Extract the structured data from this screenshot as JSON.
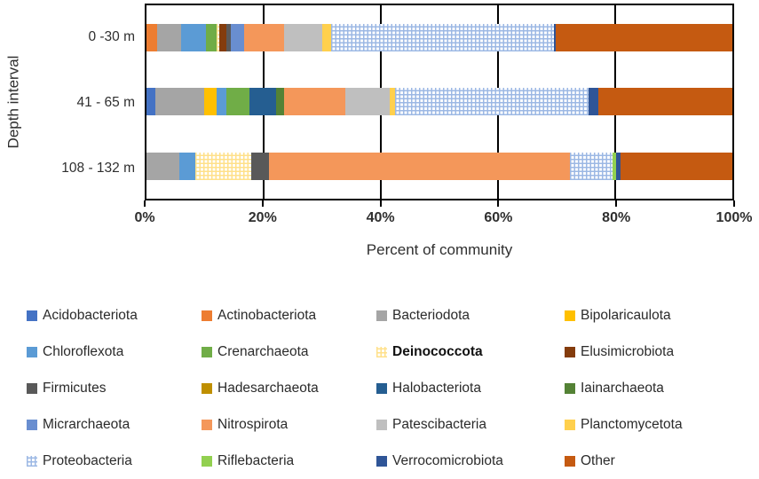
{
  "chart_data": {
    "type": "bar",
    "orientation": "horizontal",
    "stacked": true,
    "xlabel": "Percent of community",
    "ylabel": "Depth interval",
    "categories": [
      "0 -30 m",
      "41 - 65 m",
      "108 - 132 m"
    ],
    "x_ticks": [
      "0%",
      "20%",
      "40%",
      "60%",
      "80%",
      "100%"
    ],
    "x_tick_values": [
      0,
      20,
      40,
      60,
      80,
      100
    ],
    "xlim": [
      0,
      100
    ],
    "gridline_values": [
      20,
      40,
      60,
      80
    ],
    "legend_position": "bottom",
    "legend_columns": 4,
    "series": [
      {
        "name": "Acidobacteriota",
        "color": "#4472C4",
        "values": [
          0,
          1.5,
          0
        ]
      },
      {
        "name": "Actinobacteriota",
        "color": "#ED7D31",
        "values": [
          1.8,
          0,
          0
        ]
      },
      {
        "name": "Bacteriodota",
        "color": "#A5A5A5",
        "values": [
          4.1,
          8.4,
          5.6
        ]
      },
      {
        "name": "Bipolaricaulota",
        "color": "#FFC000",
        "values": [
          0,
          2.0,
          0
        ]
      },
      {
        "name": "Chloroflexota",
        "color": "#5B9BD5",
        "values": [
          4.2,
          1.7,
          2.7
        ]
      },
      {
        "name": "Crenarchaeota",
        "color": "#70AD47",
        "values": [
          1.8,
          4.0,
          0
        ]
      },
      {
        "name": "Deinococcota",
        "color": "#FFE08A",
        "pattern": "grid",
        "bold_label": true,
        "values": [
          0.6,
          0,
          9.6
        ]
      },
      {
        "name": "Elusimicrobiota",
        "color": "#843C0C",
        "values": [
          1.1,
          0,
          0
        ]
      },
      {
        "name": "Firmicutes",
        "color": "#595959",
        "values": [
          0.8,
          0,
          3.0
        ]
      },
      {
        "name": "Hadesarchaeota",
        "color": "#BF8F00",
        "values": [
          0,
          0,
          0
        ]
      },
      {
        "name": "Halobacteriota",
        "color": "#255E91",
        "values": [
          0,
          4.5,
          0
        ]
      },
      {
        "name": "Iainarchaeota",
        "color": "#548235",
        "values": [
          0,
          1.4,
          0
        ]
      },
      {
        "name": "Micrarchaeota",
        "color": "#698ED0",
        "values": [
          2.3,
          0,
          0
        ]
      },
      {
        "name": "Nitrospirota",
        "color": "#F4975A",
        "values": [
          6.8,
          10.4,
          51.4
        ]
      },
      {
        "name": "Patescibacteria",
        "color": "#BFBFBF",
        "values": [
          6.5,
          7.7,
          0
        ]
      },
      {
        "name": "Planctomycetota",
        "color": "#FFD04D",
        "values": [
          1.5,
          0.8,
          0
        ]
      },
      {
        "name": "Proteobacteria",
        "color": "#9CB8E4",
        "pattern": "grid",
        "values": [
          38.0,
          33.0,
          7.2
        ]
      },
      {
        "name": "Riflebacteria",
        "color": "#92D050",
        "values": [
          0,
          0,
          0.7
        ]
      },
      {
        "name": "Verrocomicrobiota",
        "color": "#2F5597",
        "values": [
          0.4,
          1.8,
          0.7
        ]
      },
      {
        "name": "Other",
        "color": "#C55A11",
        "values": [
          30.1,
          22.8,
          19.1
        ]
      }
    ]
  }
}
